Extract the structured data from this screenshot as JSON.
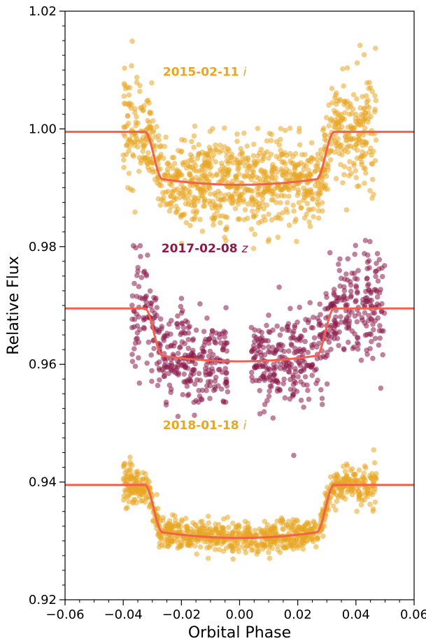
{
  "chart_data": {
    "type": "scatter",
    "xlabel": "Orbital Phase",
    "ylabel": "Relative Flux",
    "xlim": [
      -0.06,
      0.06
    ],
    "ylim": [
      0.92,
      1.02
    ],
    "x_major_ticks": [
      -0.06,
      -0.04,
      -0.02,
      0.0,
      0.02,
      0.04,
      0.06
    ],
    "x_tick_labels": [
      "−0.06",
      "−0.04",
      "−0.02",
      "0.00",
      "0.02",
      "0.04",
      "0.06"
    ],
    "y_major_ticks": [
      0.92,
      0.94,
      0.96,
      0.98,
      1.0,
      1.02
    ],
    "y_tick_labels": [
      "0.92",
      "0.94",
      "0.96",
      "0.98",
      "1.00",
      "1.02"
    ],
    "minor_ticks": true,
    "grid": false,
    "model_color": "#f0614f",
    "series": [
      {
        "label_main": "2015-02-11 ",
        "label_band": "i",
        "color": "#e8a623",
        "baseline": 0.9995,
        "depth": 0.009,
        "x_range": [
          -0.04,
          0.047
        ],
        "scatter": 0.0038,
        "n_points": 1100,
        "label_x": -0.012,
        "label_y": 1.009
      },
      {
        "label_main": "2017-02-08 ",
        "label_band": "z",
        "color": "#8b1a4a",
        "baseline": 0.9695,
        "depth": 0.009,
        "x_range": [
          -0.037,
          0.05
        ],
        "gap": [
          -0.004,
          0.004
        ],
        "scatter": 0.0037,
        "n_points": 900,
        "label_x": -0.012,
        "label_y": 0.979
      },
      {
        "label_main": "2018-01-18 ",
        "label_band": "i",
        "color": "#e8a623",
        "baseline": 0.9395,
        "depth": 0.009,
        "x_range": [
          -0.04,
          0.047
        ],
        "scatter": 0.0013,
        "n_points": 950,
        "label_x": -0.012,
        "label_y": 0.949
      }
    ]
  }
}
